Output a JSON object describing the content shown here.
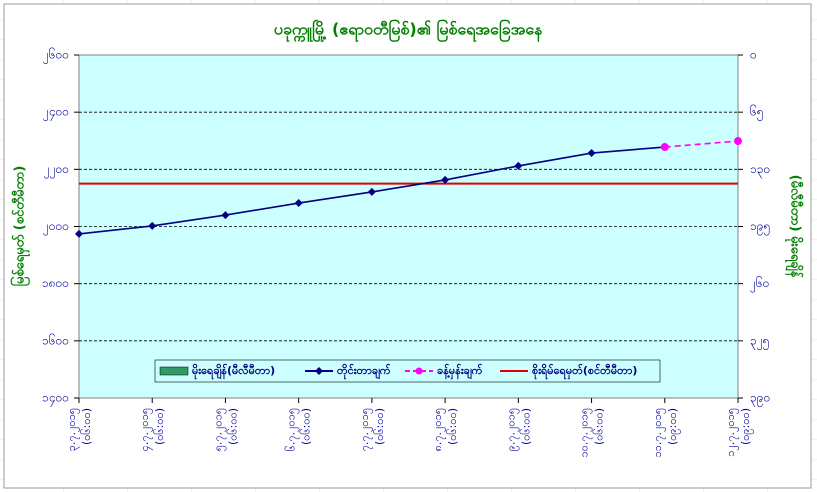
{
  "chart_data": {
    "type": "line",
    "title": "ပခုက္ကူမြို့ (ဧရာဝတီမြစ်)၏ မြစ်ရေအခြေအနေ",
    "y_label": "မြစ်ရေမှတ် (စင်တီမီတာ)",
    "y2_label": "(မီလီမီတာ) မိုးရေချိန်",
    "categories": [
      "၃.၇.၂၀၁၅",
      "၄.၇.၂၀၁၅",
      "၅.၇.၂၀၁၅",
      "၆.၇.၂၀၁၅",
      "၇.၇.၂၀၁၅",
      "၈.၇.၂၀၁၅",
      "၉.၇.၂၀၁၅",
      "၁၀.၇.၂၀၁၅",
      "၁၁.၇.၂၀၁၅",
      "၁၂.၇.၂၀၁၅"
    ],
    "category_times": [
      "(၀၆:၀၀)",
      "(၀၆:၀၀)",
      "(၀၆:၀၀)",
      "(၀၆:၀၀)",
      "(၀၆:၀၀)",
      "(၀၆:၀၀)",
      "(၀၆:၀၀)",
      "(၀၆:၀၀)",
      "(၀၉:၀၀)",
      "(၀၉:၀၀)"
    ],
    "ylim": [
      1400,
      2600
    ],
    "yticks": [
      {
        "value": 1400,
        "label": "၁၄၀၀"
      },
      {
        "value": 1600,
        "label": "၁၆၀၀"
      },
      {
        "value": 1800,
        "label": "၁၈၀၀"
      },
      {
        "value": 2000,
        "label": "၂၀၀၀"
      },
      {
        "value": 2200,
        "label": "၂၂၀၀"
      },
      {
        "value": 2400,
        "label": "၂၄၀၀"
      },
      {
        "value": 2600,
        "label": "၂၆၀၀"
      }
    ],
    "y2lim": [
      0,
      390
    ],
    "y2_reversed": true,
    "y2ticks": [
      {
        "value": 0,
        "label": "၀"
      },
      {
        "value": 65,
        "label": "၆၅"
      },
      {
        "value": 130,
        "label": "၁၃၀"
      },
      {
        "value": 195,
        "label": "၁၉၅"
      },
      {
        "value": 260,
        "label": "၂၆၀"
      },
      {
        "value": 325,
        "label": "၃၂၅"
      },
      {
        "value": 390,
        "label": "၃၉၀"
      }
    ],
    "grid": true,
    "series": [
      {
        "name": "မိုးရေချိန်(မီလီမီတာ)",
        "kind": "bar",
        "axis": "y2",
        "color": "#339966",
        "values": [
          0,
          0,
          0,
          0,
          0,
          0,
          0,
          0,
          0,
          0
        ]
      },
      {
        "name": "တိုင်းတာချက်",
        "kind": "line",
        "marker": "diamond",
        "color": "#000080",
        "values": [
          1974,
          2002,
          2040,
          2082,
          2121,
          2163,
          2212,
          2257,
          2278,
          null
        ]
      },
      {
        "name": "ခန့်မှန်းချက်",
        "kind": "line",
        "marker": "circle",
        "dashed": true,
        "color": "#ff00ff",
        "values": [
          null,
          null,
          null,
          null,
          null,
          null,
          null,
          null,
          2278,
          2299
        ]
      }
    ],
    "reference_line": {
      "name": "စိုးရိမ်ရေမှတ်(စင်တီမီတာ)",
      "color": "#e00000",
      "value": 2150
    }
  }
}
